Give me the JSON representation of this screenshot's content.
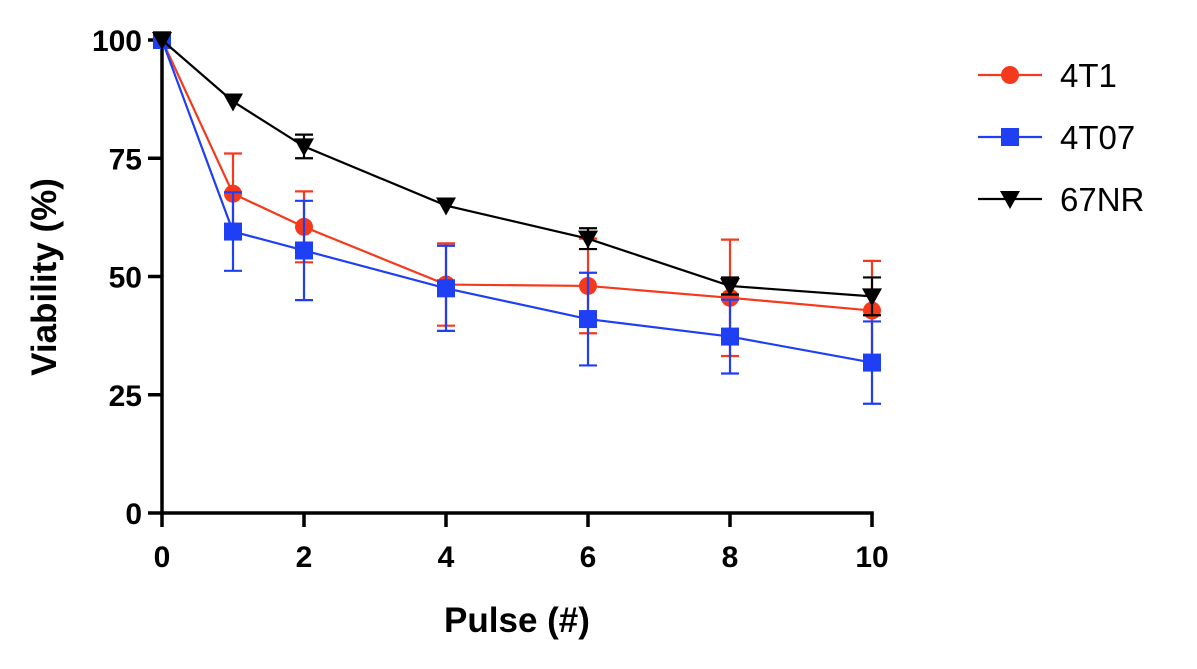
{
  "chart_data": {
    "type": "line",
    "title": "",
    "xlabel": "Pulse (#)",
    "ylabel": "Viability (%)",
    "xlim": [
      0,
      10
    ],
    "ylim": [
      0,
      100
    ],
    "x_ticks": [
      0,
      2,
      4,
      6,
      8,
      10
    ],
    "x_tick_labels": [
      "0",
      "2",
      "4",
      "6",
      "8",
      "10"
    ],
    "y_ticks": [
      0,
      25,
      50,
      75,
      100
    ],
    "y_tick_labels": [
      "0",
      "25",
      "50",
      "75",
      "100"
    ],
    "grid": false,
    "legend_position": "right",
    "series": [
      {
        "name": "4T1",
        "color": "#f5391c",
        "marker": "circle",
        "x": [
          0,
          1,
          2,
          4,
          6,
          8,
          10
        ],
        "y": [
          100,
          67.5,
          60.5,
          48.3,
          48.0,
          45.5,
          42.8
        ],
        "err": [
          0,
          8.5,
          7.5,
          8.7,
          10.0,
          12.3,
          10.5
        ]
      },
      {
        "name": "4T07",
        "color": "#1f3ff5",
        "marker": "square",
        "x": [
          0,
          1,
          2,
          4,
          6,
          8,
          10
        ],
        "y": [
          100,
          59.5,
          55.5,
          47.5,
          41.0,
          37.3,
          31.8
        ],
        "err": [
          0,
          8.3,
          10.5,
          9.0,
          9.8,
          7.8,
          8.7
        ]
      },
      {
        "name": "67NR",
        "color": "#000000",
        "marker": "triangle-down",
        "x": [
          0,
          1,
          2,
          4,
          6,
          8,
          10
        ],
        "y": [
          100,
          87.0,
          77.5,
          65.0,
          58.0,
          48.0,
          45.8
        ],
        "err": [
          0,
          0,
          2.5,
          0,
          2.2,
          1.8,
          4.0
        ]
      }
    ]
  }
}
